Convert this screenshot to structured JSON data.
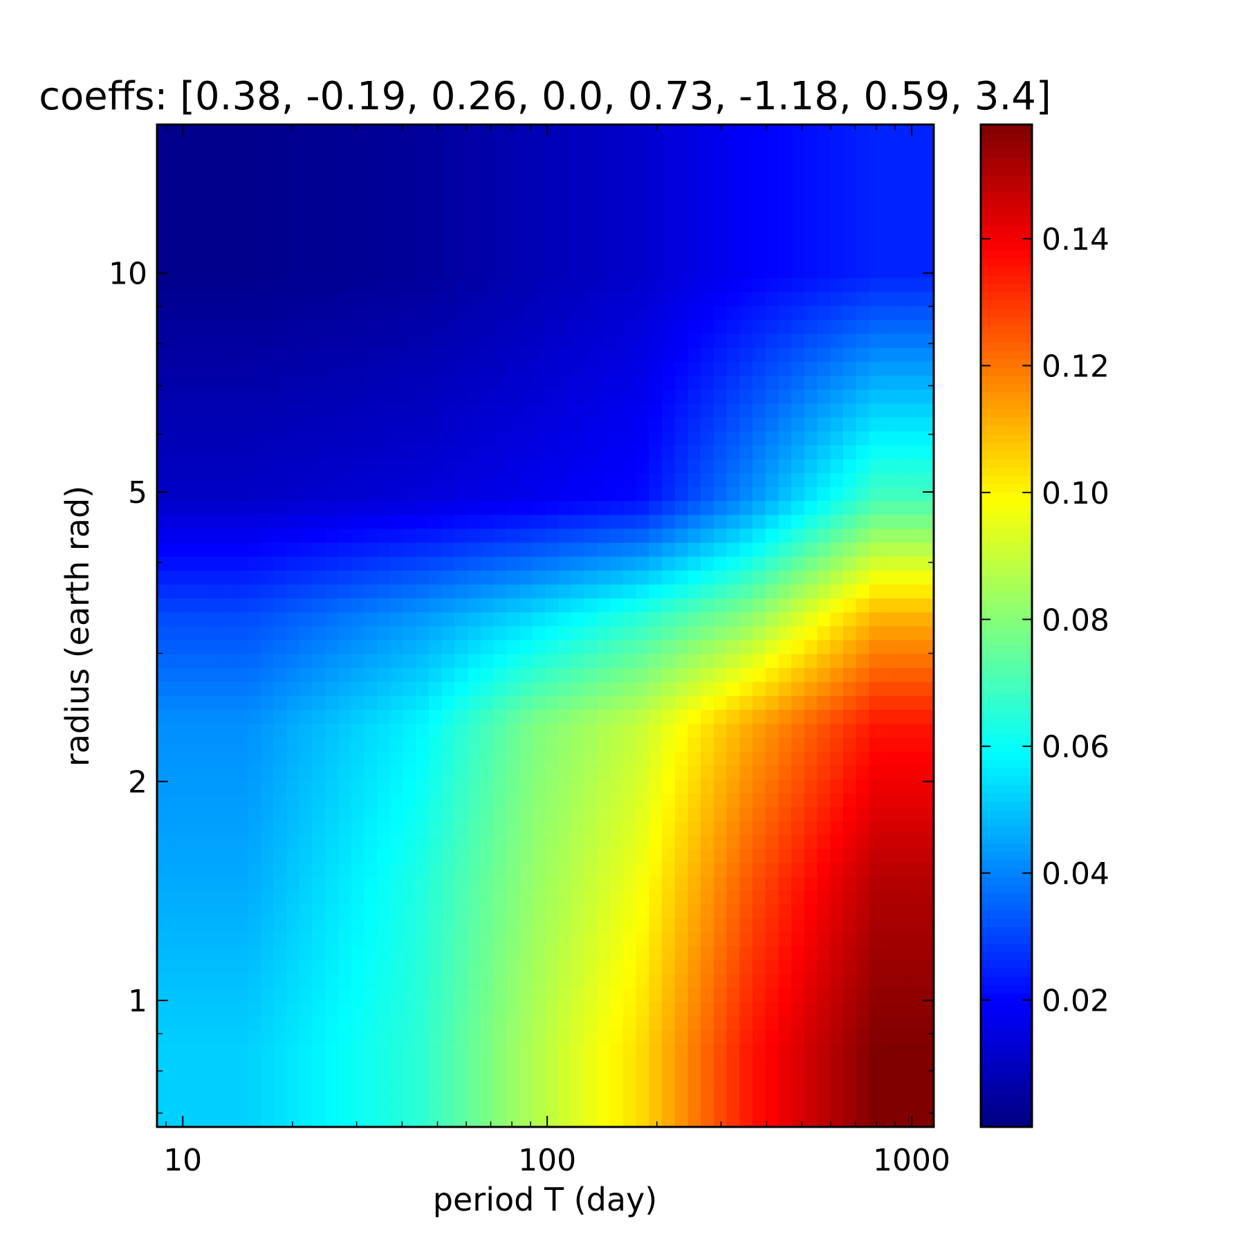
{
  "chart_data": {
    "type": "heatmap",
    "title": "coeffs: [0.38, -0.19, 0.26, 0.0, 0.73, -1.18, 0.59, 3.4]",
    "xlabel": "period T (day)",
    "ylabel": "radius (earth rad)",
    "x_scale": "log",
    "y_scale": "log",
    "xlim": [
      8.5,
      1150
    ],
    "ylim": [
      0.67,
      16
    ],
    "x_ticks": [
      {
        "value": 10,
        "label": "10"
      },
      {
        "value": 100,
        "label": "100"
      },
      {
        "value": 1000,
        "label": "1000"
      }
    ],
    "y_ticks": [
      {
        "value": 1,
        "label": "1"
      },
      {
        "value": 2,
        "label": "2"
      },
      {
        "value": 5,
        "label": "5"
      },
      {
        "value": 10,
        "label": "10"
      }
    ],
    "colormap": "jet",
    "colorbar": {
      "range": [
        0.0,
        0.158
      ],
      "ticks": [
        {
          "value": 0.02,
          "label": "0.02"
        },
        {
          "value": 0.04,
          "label": "0.04"
        },
        {
          "value": 0.06,
          "label": "0.06"
        },
        {
          "value": 0.08,
          "label": "0.08"
        },
        {
          "value": 0.1,
          "label": "0.10"
        },
        {
          "value": 0.12,
          "label": "0.12"
        },
        {
          "value": 0.14,
          "label": "0.14"
        }
      ]
    },
    "grid": false,
    "x_bin_edges": [
      8.5,
      32,
      64,
      128,
      256,
      500,
      1150
    ],
    "y_bin_edges": [
      0.67,
      1.0,
      2.0,
      2.9,
      4.0,
      6.0,
      16.0
    ],
    "x_bin_centers": [
      15,
      45,
      90,
      180,
      360,
      800
    ],
    "y_bin_centers": [
      0.85,
      1.45,
      2.4,
      3.4,
      4.9,
      10.0
    ],
    "values": [
      [
        0.052,
        0.066,
        0.086,
        0.104,
        0.135,
        0.158
      ],
      [
        0.046,
        0.064,
        0.082,
        0.097,
        0.125,
        0.15
      ],
      [
        0.042,
        0.058,
        0.078,
        0.09,
        0.112,
        0.135
      ],
      [
        0.031,
        0.043,
        0.053,
        0.065,
        0.08,
        0.11
      ],
      [
        0.011,
        0.014,
        0.017,
        0.021,
        0.042,
        0.07
      ],
      [
        0.002,
        0.004,
        0.008,
        0.012,
        0.019,
        0.025
      ]
    ]
  }
}
